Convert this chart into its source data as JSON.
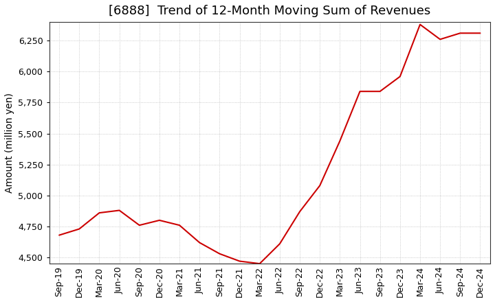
{
  "title": "[6888]  Trend of 12-Month Moving Sum of Revenues",
  "ylabel": "Amount (million yen)",
  "line_color": "#cc0000",
  "background_color": "#ffffff",
  "plot_bg_color": "#ffffff",
  "grid_color": "#aaaaaa",
  "xlabels": [
    "Sep-19",
    "Dec-19",
    "Mar-20",
    "Jun-20",
    "Sep-20",
    "Dec-20",
    "Mar-21",
    "Jun-21",
    "Sep-21",
    "Dec-21",
    "Mar-22",
    "Jun-22",
    "Sep-22",
    "Dec-22",
    "Mar-23",
    "Jun-23",
    "Sep-23",
    "Dec-23",
    "Mar-24",
    "Jun-24",
    "Sep-24",
    "Dec-24"
  ],
  "values": [
    4680,
    4730,
    4860,
    4880,
    4760,
    4800,
    4760,
    4620,
    4530,
    4470,
    4450,
    4610,
    4870,
    5080,
    5440,
    5840,
    5840,
    5960,
    6380,
    6260,
    6310,
    6310
  ],
  "ylim": [
    4450,
    6400
  ],
  "yticks": [
    4500,
    4750,
    5000,
    5250,
    5500,
    5750,
    6000,
    6250
  ],
  "title_fontsize": 13,
  "ylabel_fontsize": 10,
  "tick_fontsize": 9
}
